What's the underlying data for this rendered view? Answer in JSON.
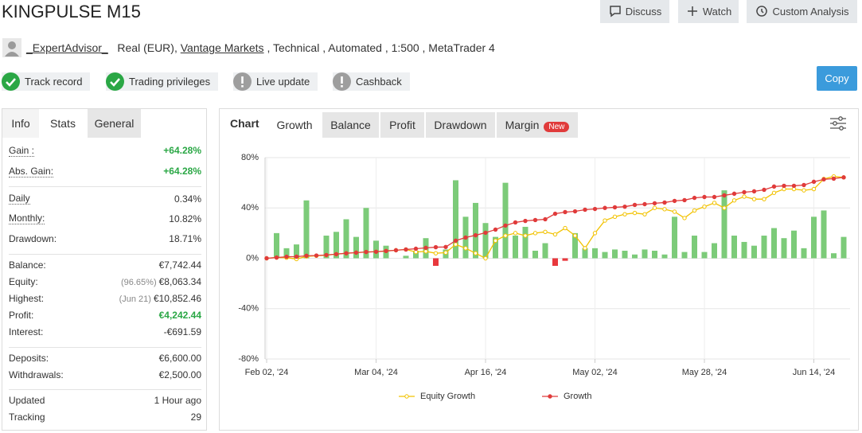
{
  "header": {
    "title": "KINGPULSE M15",
    "buttons": [
      "Discuss",
      "Watch",
      "Custom Analysis"
    ],
    "copy": "Copy"
  },
  "account": {
    "user": "_ExpertAdvisor_",
    "type": "Real (EUR),",
    "broker": "Vantage Markets",
    "details": ", Technical , Automated , 1:500 , MetaTrader 4"
  },
  "badges": [
    {
      "label": "Track record",
      "status": "ok"
    },
    {
      "label": "Trading privileges",
      "status": "ok"
    },
    {
      "label": "Live update",
      "status": "warn"
    },
    {
      "label": "Cashback",
      "status": "warn"
    }
  ],
  "stats_tabs": {
    "tabs": [
      "Info",
      "Stats",
      "General"
    ],
    "active": 1
  },
  "stats": [
    [
      {
        "label": "Gain :",
        "value": "+64.28%",
        "color": "#2aa745"
      },
      {
        "label": "Abs. Gain:",
        "value": "+64.28%",
        "color": "#2aa745"
      }
    ],
    [
      {
        "label": "Daily",
        "value": "0.34%"
      },
      {
        "label": "Monthly:",
        "value": "10.82%"
      },
      {
        "label": "Drawdown:",
        "value": "18.71%"
      }
    ],
    [
      {
        "label": "Balance:",
        "value": "€7,742.44"
      },
      {
        "label": "Equity:",
        "note": "(96.65%)",
        "value": "€8,063.34"
      },
      {
        "label": "Highest:",
        "note": "(Jun 21)",
        "value": "€10,852.46"
      },
      {
        "label": "Profit:",
        "value": "€4,242.44",
        "color": "#2aa745"
      },
      {
        "label": "Interest:",
        "value": "-€691.59"
      }
    ],
    [
      {
        "label": "Deposits:",
        "value": "€6,600.00"
      },
      {
        "label": "Withdrawals:",
        "value": "€2,500.00"
      }
    ],
    [
      {
        "label": "Updated",
        "value": "1 Hour ago"
      },
      {
        "label": "Tracking",
        "value": "29"
      }
    ]
  ],
  "chart_tabs": {
    "label": "Chart",
    "tabs": [
      "Growth",
      "Balance",
      "Profit",
      "Drawdown",
      "Margin"
    ],
    "active": 0,
    "new_badge": "New"
  },
  "chart_data": {
    "type": "combo",
    "categories": [
      "Feb 02, '24",
      null,
      null,
      null,
      null,
      null,
      null,
      null,
      null,
      null,
      null,
      "Mar 04, '24",
      null,
      null,
      null,
      null,
      null,
      null,
      null,
      null,
      null,
      null,
      "Apr 16, '24",
      null,
      null,
      null,
      null,
      null,
      null,
      null,
      null,
      null,
      null,
      "May 02, '24",
      null,
      null,
      null,
      null,
      null,
      null,
      null,
      null,
      null,
      null,
      "May 28, '24",
      null,
      null,
      null,
      null,
      null,
      null,
      null,
      null,
      null,
      null,
      "Jun 14, '24",
      null,
      null,
      null
    ],
    "ylim": [
      -80,
      80
    ],
    "yticks": [
      {
        "value": -80,
        "label": "-80%"
      },
      {
        "value": -40,
        "label": "-40%"
      },
      {
        "value": 0,
        "label": "0%"
      },
      {
        "value": 40,
        "label": "40%"
      },
      {
        "value": 80,
        "label": "80%"
      }
    ],
    "grid": true,
    "bars": {
      "color": "#7ccb79",
      "negative_color": "#e8383d",
      "values": [
        null,
        20,
        8,
        11,
        46,
        null,
        18,
        21,
        31,
        17,
        40,
        14,
        10,
        null,
        2,
        6,
        16,
        -6,
        7,
        62,
        33,
        44,
        28,
        17,
        60,
        18,
        25,
        6,
        12,
        -6,
        -2,
        20,
        8,
        8,
        5,
        7,
        6,
        3,
        7,
        6,
        3,
        33,
        5,
        18,
        5,
        12,
        54,
        18,
        13,
        10,
        18,
        24,
        16,
        22,
        8,
        33,
        38,
        4,
        17
      ]
    },
    "series": [
      {
        "name": "Equity Growth",
        "color": "#f2c200",
        "values": [
          0,
          0.6,
          0.5,
          -0.6,
          1.5,
          2,
          2.5,
          3.3,
          4,
          4.5,
          5,
          5.2,
          5.8,
          6.4,
          7,
          5,
          5.5,
          4,
          4.5,
          11,
          8,
          4,
          0,
          14,
          18,
          20,
          18,
          20,
          21,
          19,
          24,
          18,
          8,
          20,
          30,
          33,
          35,
          36,
          35,
          40,
          39,
          37,
          32,
          38,
          41,
          44,
          40,
          46,
          49,
          47,
          47,
          52,
          55,
          55,
          54,
          55,
          63,
          65,
          64.28
        ]
      },
      {
        "name": "Growth",
        "color": "#e03b3b",
        "values": [
          0,
          0.6,
          1.2,
          1.3,
          2,
          2.2,
          2.6,
          3.3,
          4,
          4.5,
          5,
          5.2,
          5.8,
          6.4,
          7,
          7.6,
          8.3,
          8.8,
          9,
          14,
          16.5,
          18.3,
          20.3,
          22.8,
          26,
          28.5,
          29.7,
          30.4,
          31,
          35.4,
          36.7,
          37.3,
          38.6,
          39.2,
          40,
          40.5,
          41,
          42.4,
          43,
          43.7,
          44.3,
          45.6,
          46.2,
          48,
          48.7,
          48.7,
          50,
          51.3,
          52.5,
          53.2,
          54.4,
          57,
          57.6,
          57.6,
          58.2,
          60.8,
          62.7,
          63.3,
          64.28
        ]
      }
    ]
  }
}
